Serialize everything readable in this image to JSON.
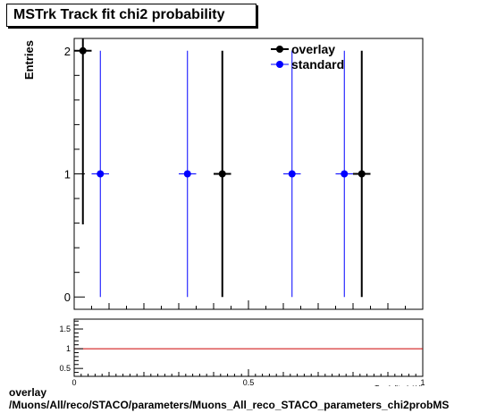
{
  "title": "MSTrk Track fit chi2 probability",
  "footer": {
    "line1": "overlay",
    "line2": "/Muons/All/reco/STACO/parameters/Muons_All_reco_STACO_parameters_chi2probMS"
  },
  "chart_data": [
    {
      "type": "scatter",
      "ylabel": "Entries",
      "xlim": [
        0,
        1
      ],
      "ylim": [
        -0.1,
        2.1
      ],
      "y_ticks": [
        0,
        1,
        2
      ],
      "y_tick_labels": [
        "0",
        "1",
        "2"
      ],
      "legend": {
        "position": "top-right",
        "entries": [
          {
            "label": "overlay",
            "color": "#000000"
          },
          {
            "label": "standard",
            "color": "#0000ff"
          }
        ]
      },
      "series": [
        {
          "name": "overlay",
          "color": "#000000",
          "points": [
            {
              "x": 0.025,
              "y": 2,
              "xerr": 0.025,
              "yerr_low": 1.41,
              "yerr_high": 1.41
            },
            {
              "x": 0.425,
              "y": 1,
              "xerr": 0.025,
              "yerr_low": 1.0,
              "yerr_high": 1.0
            },
            {
              "x": 0.825,
              "y": 1,
              "xerr": 0.025,
              "yerr_low": 1.0,
              "yerr_high": 1.0
            }
          ]
        },
        {
          "name": "standard",
          "color": "#0000ff",
          "points": [
            {
              "x": 0.075,
              "y": 1,
              "xerr": 0.025,
              "yerr_low": 1.0,
              "yerr_high": 1.0
            },
            {
              "x": 0.325,
              "y": 1,
              "xerr": 0.025,
              "yerr_low": 1.0,
              "yerr_high": 1.0
            },
            {
              "x": 0.625,
              "y": 1,
              "xerr": 0.025,
              "yerr_low": 1.0,
              "yerr_high": 1.0
            },
            {
              "x": 0.775,
              "y": 1,
              "xerr": 0.025,
              "yerr_low": 1.0,
              "yerr_high": 1.0
            }
          ]
        }
      ]
    },
    {
      "type": "line",
      "xlabel": "Track fit p(χ²/d)",
      "xlim": [
        0,
        1
      ],
      "ylim": [
        0.3,
        1.75
      ],
      "x_ticks": [
        0,
        0.5,
        1
      ],
      "x_tick_labels": [
        "0",
        "0.5",
        "1"
      ],
      "y_ticks": [
        0.5,
        1,
        1.5
      ],
      "y_tick_labels": [
        "0.5",
        "1",
        "1.5"
      ],
      "reference_line": {
        "y": 1,
        "color": "#cc0000"
      }
    }
  ]
}
